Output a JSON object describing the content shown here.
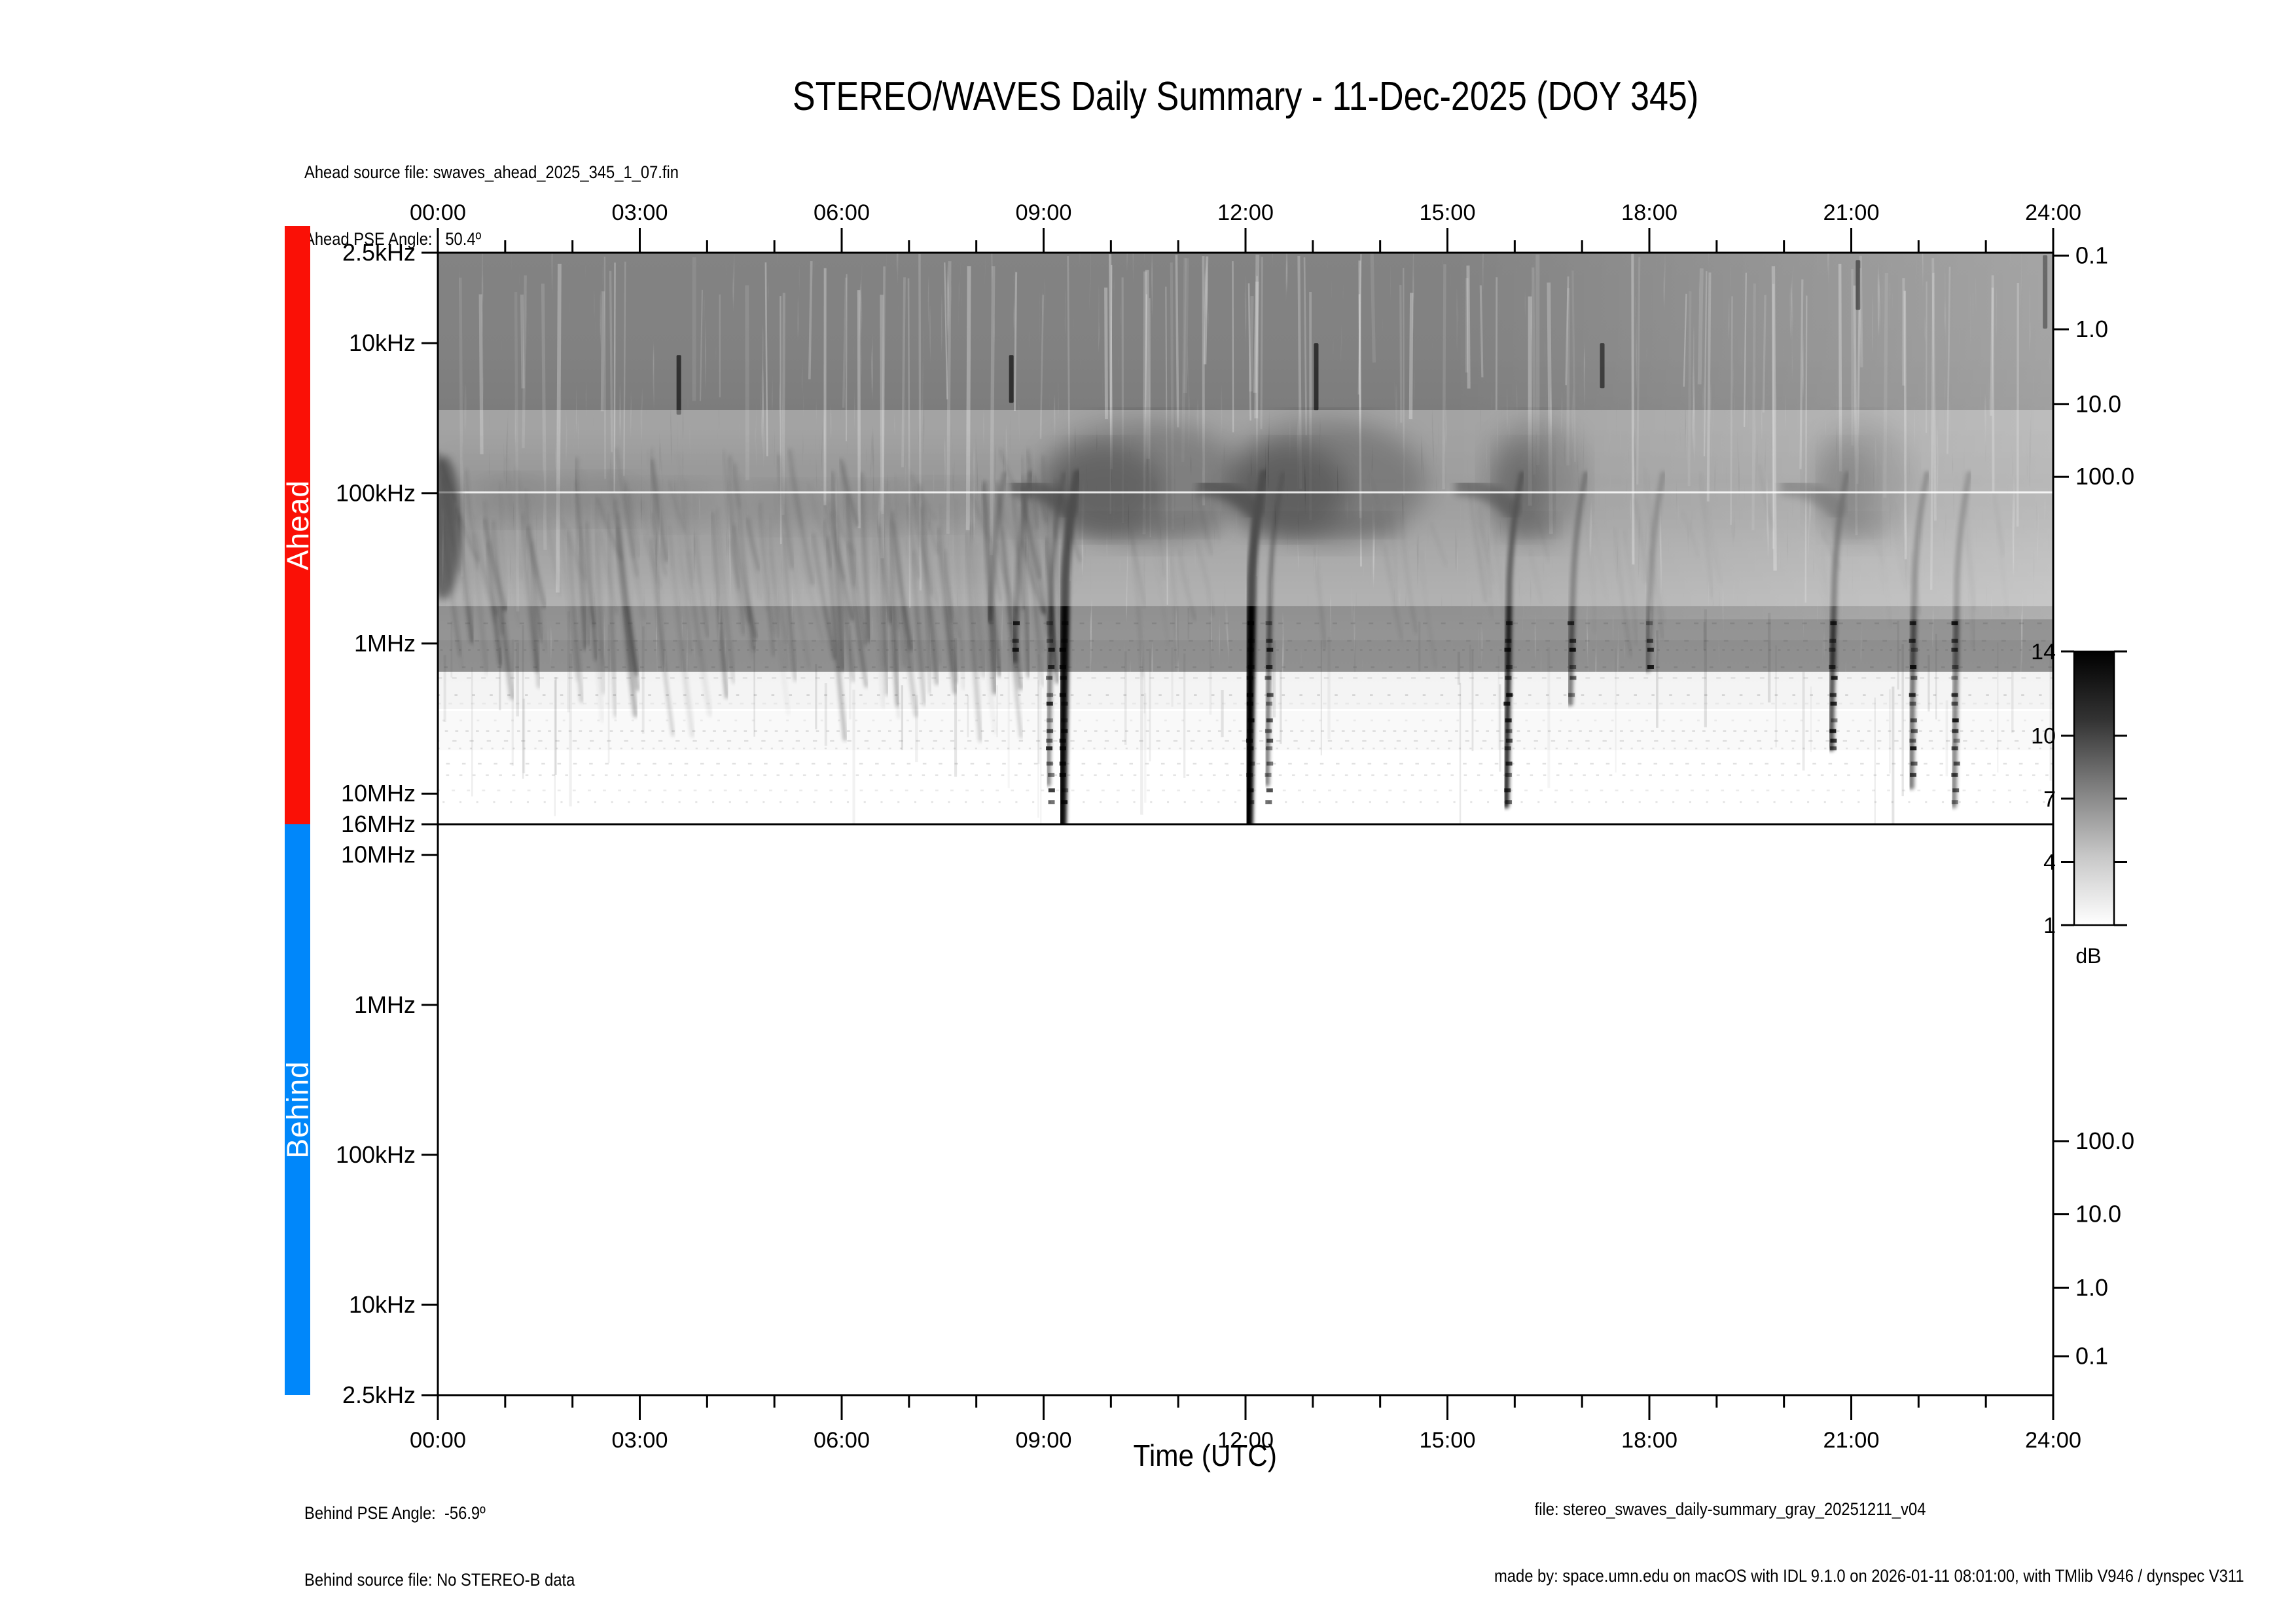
{
  "title": "STEREO/WAVES Daily Summary - 11-Dec-2025 (DOY 345)",
  "header": {
    "ahead_source_line": "Ahead source file: swaves_ahead_2025_345_1_07.fin",
    "ahead_pse_line": "Ahead PSE Angle:   50.4º"
  },
  "footer": {
    "behind_pse_line": "Behind PSE Angle:  -56.9º",
    "behind_source_line": "Behind source file: No STEREO-B data",
    "xaxis_title": "Time (UTC)",
    "file_line": "file: stereo_swaves_daily-summary_gray_20251211_v04",
    "madeby_line": "made by: space.umn.edu on macOS with IDL 9.1.0 on 2026-01-11 08:01:00, with TMlib V946 / dynspec V311"
  },
  "time_axis": {
    "major_labels": [
      "00:00",
      "03:00",
      "06:00",
      "09:00",
      "12:00",
      "15:00",
      "18:00",
      "21:00",
      "24:00"
    ],
    "hours_per_major": 3,
    "hours_per_minor": 1
  },
  "panels": {
    "ahead": {
      "label": "Ahead",
      "color": "#fa1006",
      "freq_ticks": [
        {
          "label": "2.5kHz",
          "pos": 0.0
        },
        {
          "label": "10kHz",
          "pos": 0.1582
        },
        {
          "label": "100kHz",
          "pos": 0.421
        },
        {
          "label": "1MHz",
          "pos": 0.6837
        },
        {
          "label": "10MHz",
          "pos": 0.9464
        },
        {
          "label": "16MHz",
          "pos": 1.0
        }
      ],
      "right_ticks": [
        {
          "label": "0.1",
          "pos": 0.005
        },
        {
          "label": "1.0",
          "pos": 0.134
        },
        {
          "label": "10.0",
          "pos": 0.265
        },
        {
          "label": "100.0",
          "pos": 0.392
        }
      ]
    },
    "behind": {
      "label": "Behind",
      "color": "#0087fa",
      "freq_ticks": [
        {
          "label": "10MHz",
          "pos": 0.0536
        },
        {
          "label": "1MHz",
          "pos": 0.3163
        },
        {
          "label": "100kHz",
          "pos": 0.579
        },
        {
          "label": "10kHz",
          "pos": 0.8418
        },
        {
          "label": "2.5kHz",
          "pos": 1.0
        }
      ],
      "right_ticks": [
        {
          "label": "100.0",
          "pos": 0.555
        },
        {
          "label": "10.0",
          "pos": 0.683
        },
        {
          "label": "1.0",
          "pos": 0.812
        },
        {
          "label": "0.1",
          "pos": 0.932
        }
      ]
    }
  },
  "colorbar": {
    "unit_label": "dB",
    "min": 1,
    "max": 14,
    "top_color": "#000000",
    "bottom_color": "#ffffff",
    "ticks": [
      {
        "label": "14",
        "pos": 0.0
      },
      {
        "label": "10",
        "pos": 0.308
      },
      {
        "label": "7",
        "pos": 0.538
      },
      {
        "label": "4",
        "pos": 0.769
      },
      {
        "label": "1",
        "pos": 1.0
      }
    ]
  },
  "chart_data": {
    "type": "heatmap",
    "subtype": "radio_dynamic_spectrum",
    "title": "STEREO/WAVES Daily Summary - 11-Dec-2025 (DOY 345)",
    "xlabel": "Time (UTC)",
    "x_range_hours": [
      0,
      24
    ],
    "ylabel": "Frequency",
    "y_scale": "log",
    "y_range": [
      "2.5kHz",
      "16MHz"
    ],
    "grid": false,
    "colorbar": {
      "unit": "dB",
      "min": 1,
      "max": 14,
      "tick_values": [
        1,
        4,
        7,
        10,
        14
      ],
      "mapping": "black=14 dB (intense), white=1 dB"
    },
    "panels": [
      {
        "name": "Ahead",
        "has_data": true
      },
      {
        "name": "Behind",
        "has_data": false,
        "note": "No STEREO-B data (panel empty)"
      }
    ],
    "features": [
      {
        "kind": "band",
        "f_top_khz": 30,
        "f_bot_khz": 160,
        "t_start": 0,
        "t_end": 24,
        "note": "diffuse gray hectometric band around 100 kHz, strongest before 15:00"
      },
      {
        "kind": "storm",
        "t_start": 0.0,
        "t_end": 9.3,
        "f_low_khz": 60,
        "f_high_khz": 1500,
        "note": "type III storm: many slanted drifting streaks"
      },
      {
        "kind": "interference",
        "f_top_khz": 800,
        "f_bot_khz": 14000,
        "note": "horizontal dotted RFI rows across lower half"
      },
      {
        "kind": "burst",
        "t0": 8.27,
        "depth_khz": 700,
        "strength": 0.3
      },
      {
        "kind": "burst",
        "t0": 8.65,
        "depth_khz": 1300,
        "strength": 0.33
      },
      {
        "kind": "burst",
        "t0": 9.35,
        "blob_end": 11.6,
        "depth_khz": 16000,
        "strength": 0.9,
        "double_dt": -0.2
      },
      {
        "kind": "burst",
        "t0": 12.12,
        "blob_end": 14.3,
        "depth_khz": 16000,
        "strength": 1.0,
        "double_dt": 0.28
      },
      {
        "kind": "burst",
        "t0": 15.95,
        "blob_end": 16.65,
        "depth_khz": 12000,
        "strength": 0.78
      },
      {
        "kind": "burst",
        "t0": 16.9,
        "depth_khz": 2500,
        "strength": 0.45
      },
      {
        "kind": "burst",
        "t0": 18.05,
        "depth_khz": 1500,
        "strength": 0.28
      },
      {
        "kind": "burst",
        "t0": 20.78,
        "blob_end": 21.5,
        "depth_khz": 5000,
        "strength": 0.62
      },
      {
        "kind": "burst",
        "t0": 21.97,
        "depth_khz": 9000,
        "strength": 0.48
      },
      {
        "kind": "burst",
        "t0": 22.6,
        "depth_khz": 12000,
        "strength": 0.42
      },
      {
        "kind": "speck",
        "t0": 3.58,
        "f_top_khz": 12,
        "f_bot_khz": 30
      },
      {
        "kind": "speck",
        "t0": 8.52,
        "f_top_khz": 12,
        "f_bot_khz": 25
      },
      {
        "kind": "speck",
        "t0": 13.05,
        "f_top_khz": 10,
        "f_bot_khz": 28
      },
      {
        "kind": "speck",
        "t0": 17.3,
        "f_top_khz": 10,
        "f_bot_khz": 20
      },
      {
        "kind": "speck",
        "t0": 21.1,
        "f_top_khz": 2.8,
        "f_bot_khz": 6
      },
      {
        "kind": "speck",
        "t0": 23.88,
        "f_top_khz": 2.6,
        "f_bot_khz": 8
      }
    ]
  }
}
